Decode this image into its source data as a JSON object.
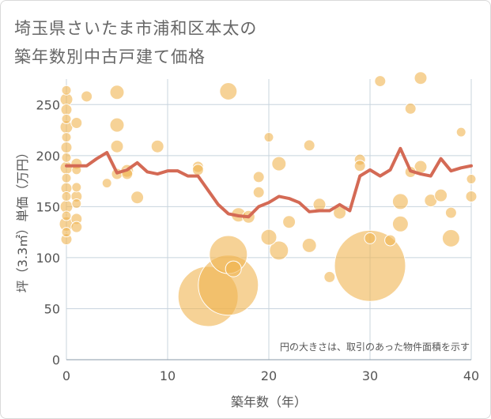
{
  "title_line1": "埼玉県さいたま市浦和区本太の",
  "title_line2": "築年数別中古戸建て価格",
  "chart_data": {
    "type": "scatter",
    "xlabel": "築年数（年）",
    "ylabel": "坪（3.3㎡）単価（万円）",
    "xlim": [
      0,
      40
    ],
    "ylim": [
      0,
      275
    ],
    "xticks": [
      0,
      10,
      20,
      30,
      40
    ],
    "yticks": [
      0,
      50,
      100,
      150,
      200,
      250
    ],
    "grid": true,
    "annotation": "円の大きさは、取引のあった物件面積を示す",
    "colors": {
      "bubble": "#f0b450",
      "line": "#d46a55",
      "grid": "#c8d4de",
      "text": "#555555"
    },
    "bubbles": [
      {
        "x": 0,
        "y": 264,
        "s": 6
      },
      {
        "x": 0,
        "y": 255,
        "s": 8
      },
      {
        "x": 0,
        "y": 245,
        "s": 7
      },
      {
        "x": 0,
        "y": 236,
        "s": 6
      },
      {
        "x": 0,
        "y": 228,
        "s": 8
      },
      {
        "x": 0,
        "y": 218,
        "s": 6
      },
      {
        "x": 0,
        "y": 208,
        "s": 7
      },
      {
        "x": 0,
        "y": 198,
        "s": 6
      },
      {
        "x": 0,
        "y": 188,
        "s": 8
      },
      {
        "x": 0,
        "y": 178,
        "s": 6
      },
      {
        "x": 0,
        "y": 168,
        "s": 7
      },
      {
        "x": 0,
        "y": 160,
        "s": 6
      },
      {
        "x": 0,
        "y": 150,
        "s": 8
      },
      {
        "x": 0,
        "y": 141,
        "s": 6
      },
      {
        "x": 0,
        "y": 133,
        "s": 9
      },
      {
        "x": 0,
        "y": 125,
        "s": 6
      },
      {
        "x": 0,
        "y": 118,
        "s": 7
      },
      {
        "x": 1,
        "y": 232,
        "s": 7
      },
      {
        "x": 1,
        "y": 192,
        "s": 7
      },
      {
        "x": 1,
        "y": 186,
        "s": 6
      },
      {
        "x": 1,
        "y": 169,
        "s": 6
      },
      {
        "x": 1,
        "y": 160,
        "s": 7
      },
      {
        "x": 1,
        "y": 153,
        "s": 6
      },
      {
        "x": 1,
        "y": 138,
        "s": 7
      },
      {
        "x": 1,
        "y": 130,
        "s": 7
      },
      {
        "x": 2,
        "y": 258,
        "s": 7
      },
      {
        "x": 4,
        "y": 173,
        "s": 6
      },
      {
        "x": 5,
        "y": 262,
        "s": 9
      },
      {
        "x": 5,
        "y": 230,
        "s": 9
      },
      {
        "x": 5,
        "y": 209,
        "s": 8
      },
      {
        "x": 5,
        "y": 182,
        "s": 7
      },
      {
        "x": 6,
        "y": 185,
        "s": 8
      },
      {
        "x": 6,
        "y": 182,
        "s": 7
      },
      {
        "x": 7,
        "y": 159,
        "s": 8
      },
      {
        "x": 9,
        "y": 209,
        "s": 8
      },
      {
        "x": 13,
        "y": 189,
        "s": 7
      },
      {
        "x": 13,
        "y": 186,
        "s": 7
      },
      {
        "x": 14,
        "y": 62,
        "s": 38
      },
      {
        "x": 16,
        "y": 263,
        "s": 11
      },
      {
        "x": 16,
        "y": 103,
        "s": 24
      },
      {
        "x": 16,
        "y": 73,
        "s": 38
      },
      {
        "x": 16.5,
        "y": 89,
        "s": 10
      },
      {
        "x": 17,
        "y": 142,
        "s": 9
      },
      {
        "x": 18,
        "y": 140,
        "s": 8
      },
      {
        "x": 19,
        "y": 179,
        "s": 7
      },
      {
        "x": 19,
        "y": 164,
        "s": 7
      },
      {
        "x": 20,
        "y": 218,
        "s": 6
      },
      {
        "x": 20,
        "y": 120,
        "s": 10
      },
      {
        "x": 21,
        "y": 192,
        "s": 9
      },
      {
        "x": 21,
        "y": 107,
        "s": 12
      },
      {
        "x": 22,
        "y": 135,
        "s": 8
      },
      {
        "x": 24,
        "y": 210,
        "s": 7
      },
      {
        "x": 24,
        "y": 112,
        "s": 9
      },
      {
        "x": 25,
        "y": 152,
        "s": 8
      },
      {
        "x": 26,
        "y": 81,
        "s": 7
      },
      {
        "x": 27,
        "y": 144,
        "s": 8
      },
      {
        "x": 29,
        "y": 196,
        "s": 7
      },
      {
        "x": 29,
        "y": 190,
        "s": 7
      },
      {
        "x": 30,
        "y": 92,
        "s": 45
      },
      {
        "x": 30,
        "y": 119,
        "s": 7
      },
      {
        "x": 31,
        "y": 273,
        "s": 7
      },
      {
        "x": 32,
        "y": 117,
        "s": 7
      },
      {
        "x": 33,
        "y": 155,
        "s": 10
      },
      {
        "x": 33,
        "y": 133,
        "s": 10
      },
      {
        "x": 34,
        "y": 246,
        "s": 7
      },
      {
        "x": 34,
        "y": 184,
        "s": 7
      },
      {
        "x": 35,
        "y": 276,
        "s": 8
      },
      {
        "x": 35,
        "y": 189,
        "s": 8
      },
      {
        "x": 36,
        "y": 156,
        "s": 8
      },
      {
        "x": 37,
        "y": 161,
        "s": 8
      },
      {
        "x": 38,
        "y": 144,
        "s": 7
      },
      {
        "x": 38,
        "y": 119,
        "s": 11
      },
      {
        "x": 39,
        "y": 223,
        "s": 6
      },
      {
        "x": 40,
        "y": 177,
        "s": 6
      },
      {
        "x": 40,
        "y": 160,
        "s": 7
      }
    ],
    "line": {
      "x": [
        0,
        1,
        2,
        3,
        4,
        5,
        6,
        7,
        8,
        9,
        10,
        11,
        12,
        13,
        14,
        15,
        16,
        17,
        18,
        19,
        20,
        21,
        22,
        23,
        24,
        25,
        26,
        27,
        28,
        29,
        30,
        31,
        32,
        33,
        34,
        35,
        36,
        37,
        38,
        39,
        40
      ],
      "y": [
        190,
        190,
        190,
        197,
        203,
        183,
        186,
        193,
        184,
        182,
        185,
        185,
        180,
        180,
        166,
        152,
        143,
        141,
        140,
        150,
        154,
        160,
        158,
        154,
        145,
        146,
        146,
        152,
        146,
        180,
        186,
        180,
        186,
        207,
        185,
        182,
        180,
        197,
        185,
        188,
        190
      ]
    }
  }
}
